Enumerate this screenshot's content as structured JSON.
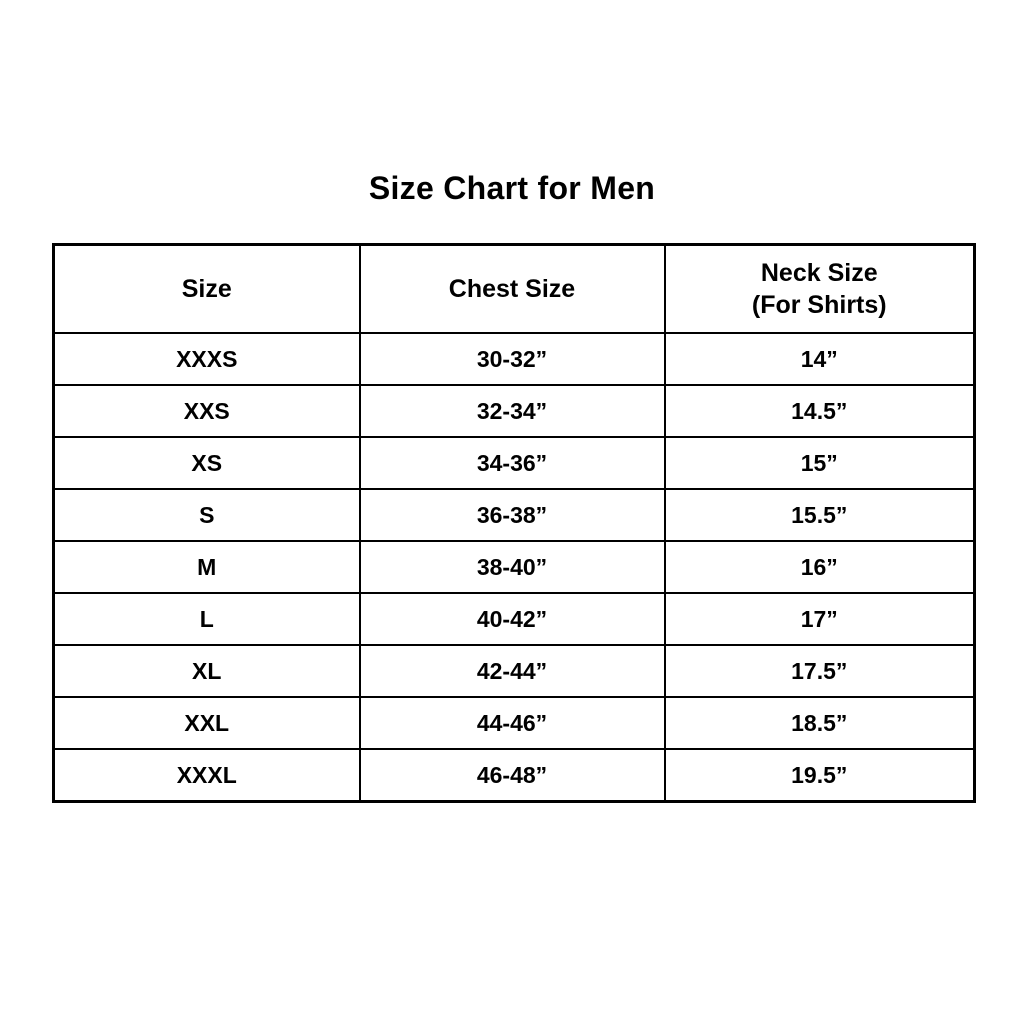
{
  "title": "Size Chart for Men",
  "header": {
    "size": "Size",
    "chest": "Chest Size",
    "neck_line1": "Neck Size",
    "neck_line2": "(For Shirts)"
  },
  "colors": {
    "background": "#ffffff",
    "text": "#000000",
    "border": "#000000"
  },
  "chart_data": {
    "type": "table",
    "title": "Size Chart for Men",
    "columns": [
      "Size",
      "Chest Size",
      "Neck Size (For Shirts)"
    ],
    "rows": [
      [
        "XXXS",
        "30-32”",
        "14”"
      ],
      [
        "XXS",
        "32-34”",
        "14.5”"
      ],
      [
        "XS",
        "34-36”",
        "15”"
      ],
      [
        "S",
        "36-38”",
        "15.5”"
      ],
      [
        "M",
        "38-40”",
        "16”"
      ],
      [
        "L",
        "40-42”",
        "17”"
      ],
      [
        "XL",
        "42-44”",
        "17.5”"
      ],
      [
        "XXL",
        "44-46”",
        "18.5”"
      ],
      [
        "XXXL",
        "46-48”",
        "19.5”"
      ]
    ]
  }
}
